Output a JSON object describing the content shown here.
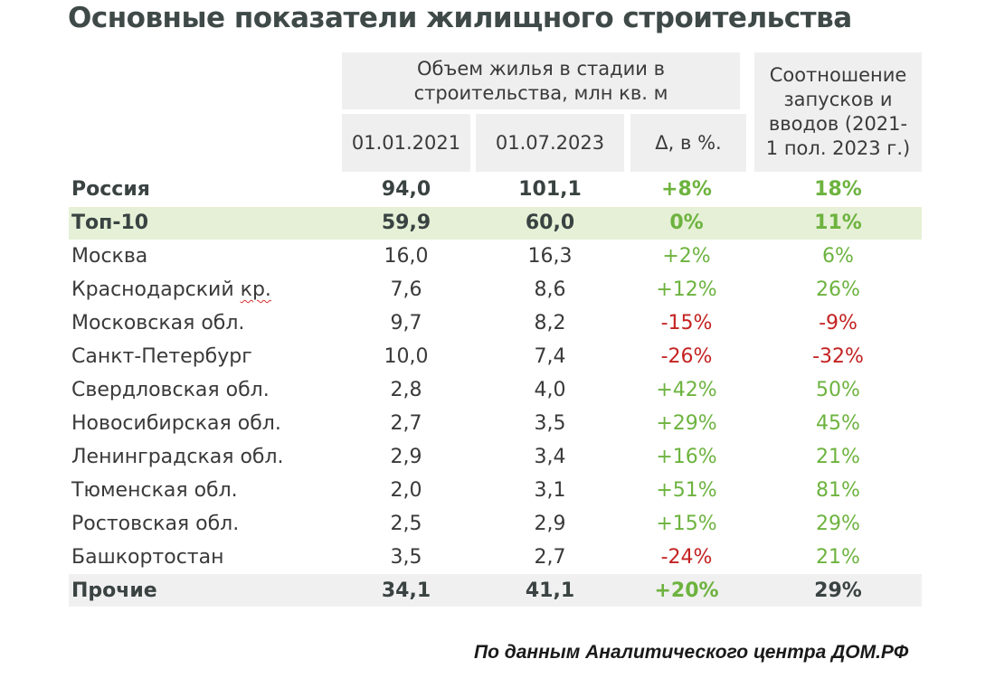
{
  "title": "Основные показатели жилищного строительства",
  "header": {
    "group_volume": "Объем жилья в стадии в строительства, млн кв. м",
    "ratio": "Соотношение запусков и вводов  (2021-1 пол. 2023 г.)",
    "col_2021": "01.01.2021",
    "col_2023": "01.07.2023",
    "col_delta": "Δ, в %."
  },
  "rows": [
    {
      "name": "Россия",
      "v2021": "94,0",
      "v2023": "101,1",
      "delta": "+8%",
      "ratio": "18%"
    },
    {
      "name": "Топ-10",
      "v2021": "59,9",
      "v2023": "60,0",
      "delta": "0%",
      "ratio": "11%"
    },
    {
      "name": "Москва",
      "v2021": "16,0",
      "v2023": "16,3",
      "delta": "+2%",
      "ratio": "6%"
    },
    {
      "name": "Краснодарский",
      "name_suffix": "кр.",
      "v2021": "7,6",
      "v2023": "8,6",
      "delta": "+12%",
      "ratio": "26%"
    },
    {
      "name": "Московская обл.",
      "v2021": "9,7",
      "v2023": "8,2",
      "delta": "-15%",
      "ratio": "-9%"
    },
    {
      "name": "Санкт-Петербург",
      "v2021": "10,0",
      "v2023": "7,4",
      "delta": "-26%",
      "ratio": "-32%"
    },
    {
      "name": "Свердловская обл.",
      "v2021": "2,8",
      "v2023": "4,0",
      "delta": "+42%",
      "ratio": "50%"
    },
    {
      "name": "Новосибирская обл.",
      "v2021": "2,7",
      "v2023": "3,5",
      "delta": "+29%",
      "ratio": "45%"
    },
    {
      "name": "Ленинградская обл.",
      "v2021": "2,9",
      "v2023": "3,4",
      "delta": "+16%",
      "ratio": "21%"
    },
    {
      "name": "Тюменская обл.",
      "v2021": "2,0",
      "v2023": "3,1",
      "delta": "+51%",
      "ratio": "81%"
    },
    {
      "name": "Ростовская обл.",
      "v2021": "2,5",
      "v2023": "2,9",
      "delta": "+15%",
      "ratio": "29%"
    },
    {
      "name": "Башкортостан",
      "v2021": "3,5",
      "v2023": "2,7",
      "delta": "-24%",
      "ratio": "21%"
    },
    {
      "name": "Прочие",
      "v2021": "34,1",
      "v2023": "41,1",
      "delta": "+20%",
      "ratio": "29%"
    }
  ],
  "source": "По данным Аналитического центра ДОМ.РФ",
  "colors": {
    "positive": "#6db33f",
    "negative": "#c42222",
    "header_bg": "#efefef",
    "top10_bg": "#e6f0d6",
    "others_bg": "#f0f0f0"
  }
}
